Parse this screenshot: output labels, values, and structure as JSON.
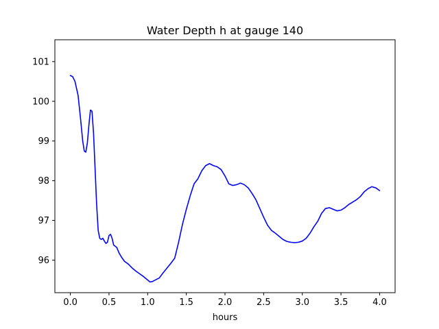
{
  "chart_data": {
    "type": "line",
    "title": "Water Depth h at gauge 140",
    "xlabel": "hours",
    "ylabel": "",
    "xlim": [
      -0.2,
      4.2
    ],
    "ylim": [
      95.18,
      101.55
    ],
    "xticks": [
      0.0,
      0.5,
      1.0,
      1.5,
      2.0,
      2.5,
      3.0,
      3.5,
      4.0
    ],
    "xtick_labels": [
      "0.0",
      "0.5",
      "1.0",
      "1.5",
      "2.0",
      "2.5",
      "3.0",
      "3.5",
      "4.0"
    ],
    "yticks": [
      96,
      97,
      98,
      99,
      100,
      101
    ],
    "ytick_labels": [
      "96",
      "97",
      "98",
      "99",
      "100",
      "101"
    ],
    "grid": false,
    "legend": null,
    "series": [
      {
        "color": "#0000ff",
        "x": [
          0.0,
          0.03,
          0.06,
          0.1,
          0.13,
          0.16,
          0.18,
          0.2,
          0.22,
          0.24,
          0.26,
          0.28,
          0.3,
          0.32,
          0.34,
          0.36,
          0.38,
          0.4,
          0.42,
          0.44,
          0.46,
          0.48,
          0.5,
          0.52,
          0.54,
          0.56,
          0.58,
          0.6,
          0.63,
          0.66,
          0.7,
          0.75,
          0.8,
          0.85,
          0.9,
          0.95,
          1.0,
          1.03,
          1.06,
          1.1,
          1.15,
          1.2,
          1.25,
          1.3,
          1.35,
          1.4,
          1.45,
          1.5,
          1.55,
          1.6,
          1.65,
          1.7,
          1.75,
          1.8,
          1.85,
          1.9,
          1.95,
          2.0,
          2.05,
          2.1,
          2.15,
          2.2,
          2.25,
          2.3,
          2.35,
          2.4,
          2.45,
          2.5,
          2.55,
          2.6,
          2.65,
          2.7,
          2.75,
          2.8,
          2.85,
          2.9,
          2.95,
          3.0,
          3.05,
          3.1,
          3.15,
          3.2,
          3.25,
          3.3,
          3.35,
          3.4,
          3.45,
          3.5,
          3.55,
          3.6,
          3.65,
          3.7,
          3.75,
          3.8,
          3.85,
          3.9,
          3.95,
          4.0
        ],
        "y": [
          100.65,
          100.62,
          100.5,
          100.15,
          99.6,
          99.0,
          98.75,
          98.72,
          98.95,
          99.4,
          99.78,
          99.75,
          99.2,
          98.3,
          97.4,
          96.75,
          96.55,
          96.52,
          96.55,
          96.48,
          96.42,
          96.45,
          96.62,
          96.65,
          96.55,
          96.38,
          96.35,
          96.32,
          96.18,
          96.08,
          95.97,
          95.9,
          95.8,
          95.72,
          95.65,
          95.58,
          95.5,
          95.45,
          95.46,
          95.5,
          95.55,
          95.68,
          95.8,
          95.92,
          96.05,
          96.45,
          96.9,
          97.28,
          97.62,
          97.92,
          98.05,
          98.25,
          98.38,
          98.43,
          98.38,
          98.35,
          98.28,
          98.12,
          97.92,
          97.88,
          97.9,
          97.94,
          97.9,
          97.82,
          97.68,
          97.52,
          97.3,
          97.08,
          96.88,
          96.75,
          96.68,
          96.6,
          96.52,
          96.47,
          96.45,
          96.44,
          96.45,
          96.48,
          96.55,
          96.68,
          96.84,
          96.98,
          97.18,
          97.3,
          97.32,
          97.28,
          97.24,
          97.26,
          97.32,
          97.4,
          97.46,
          97.52,
          97.6,
          97.72,
          97.8,
          97.85,
          97.82,
          97.75
        ]
      }
    ]
  }
}
